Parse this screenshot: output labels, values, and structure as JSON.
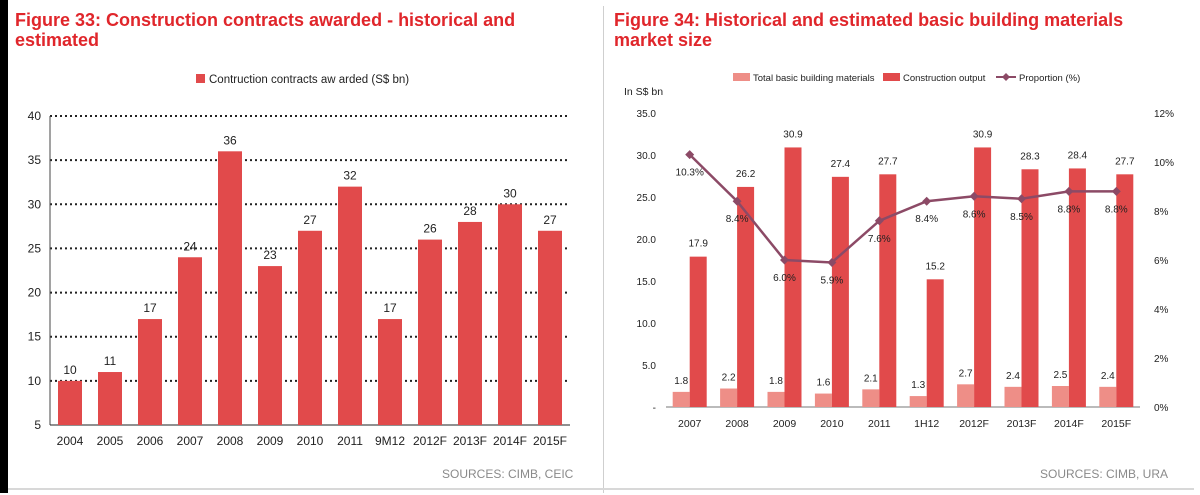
{
  "fig33": {
    "title": "Figure 33: Construction contracts awarded - historical and estimated",
    "source": "SOURCES: CIMB, CEIC"
  },
  "fig34": {
    "title": "Figure 34: Historical and estimated basic building materials market size",
    "source": "SOURCES: CIMB, URA"
  },
  "colors": {
    "title_red": "#e0262b",
    "bar_red": "#e14a4b",
    "bar_pink": "#ee8e87",
    "line_purple": "#8c4a66"
  },
  "chart_data": [
    {
      "type": "bar",
      "categories": [
        "2004",
        "2005",
        "2006",
        "2007",
        "2008",
        "2009",
        "2010",
        "2011",
        "9M12",
        "2012F",
        "2013F",
        "2014F",
        "2015F"
      ],
      "series": [
        {
          "name": "Contruction contracts aw arded (S$ bn)",
          "values": [
            10,
            11,
            17,
            24,
            36,
            23,
            27,
            32,
            17,
            26,
            28,
            30,
            27
          ]
        }
      ],
      "data_labels": [
        "10",
        "11",
        "17",
        "24",
        "36",
        "23",
        "27",
        "32",
        "17",
        "26",
        "28",
        "30",
        "27"
      ],
      "ylim": [
        5,
        40
      ],
      "yticks": [
        5,
        10,
        15,
        20,
        25,
        30,
        35,
        40
      ],
      "grid": "dotted horizontal",
      "legend": "top-center"
    },
    {
      "type": "bar",
      "categories": [
        "2007",
        "2008",
        "2009",
        "2010",
        "2011",
        "1H12",
        "2012F",
        "2013F",
        "2014F",
        "2015F"
      ],
      "series": [
        {
          "name": "Total basic building materials",
          "values": [
            1.8,
            2.2,
            1.8,
            1.6,
            2.1,
            1.3,
            2.7,
            2.4,
            2.5,
            2.4
          ],
          "labels": [
            "1.8",
            "2.2",
            "1.8",
            "1.6",
            "2.1",
            "1.3",
            "2.7",
            "2.4",
            "2.5",
            "2.4"
          ]
        },
        {
          "name": "Construction output",
          "values": [
            17.9,
            26.2,
            30.9,
            27.4,
            27.7,
            15.2,
            30.9,
            28.3,
            28.4,
            27.7
          ],
          "labels": [
            "17.9",
            "26.2",
            "30.9",
            "27.4",
            "27.7",
            "15.2",
            "30.9",
            "28.3",
            "28.4",
            "27.7"
          ]
        },
        {
          "name": "Proportion (%)",
          "type": "line",
          "axis": "right",
          "values": [
            10.3,
            8.4,
            6.0,
            5.9,
            7.6,
            8.4,
            8.6,
            8.5,
            8.8,
            8.8
          ],
          "labels": [
            "10.3%",
            "8.4%",
            "6.0%",
            "5.9%",
            "7.6%",
            "8.4%",
            "8.6%",
            "8.5%",
            "8.8%",
            "8.8%"
          ]
        }
      ],
      "ylabel": "In S$ bn",
      "ylim": [
        0,
        35
      ],
      "yticks": [
        "-",
        "5.0",
        "10.0",
        "15.0",
        "20.0",
        "25.0",
        "30.0",
        "35.0"
      ],
      "y2lim": [
        0,
        12
      ],
      "y2ticks": [
        "0%",
        "2%",
        "4%",
        "6%",
        "8%",
        "10%",
        "12%"
      ],
      "legend": "top"
    }
  ]
}
